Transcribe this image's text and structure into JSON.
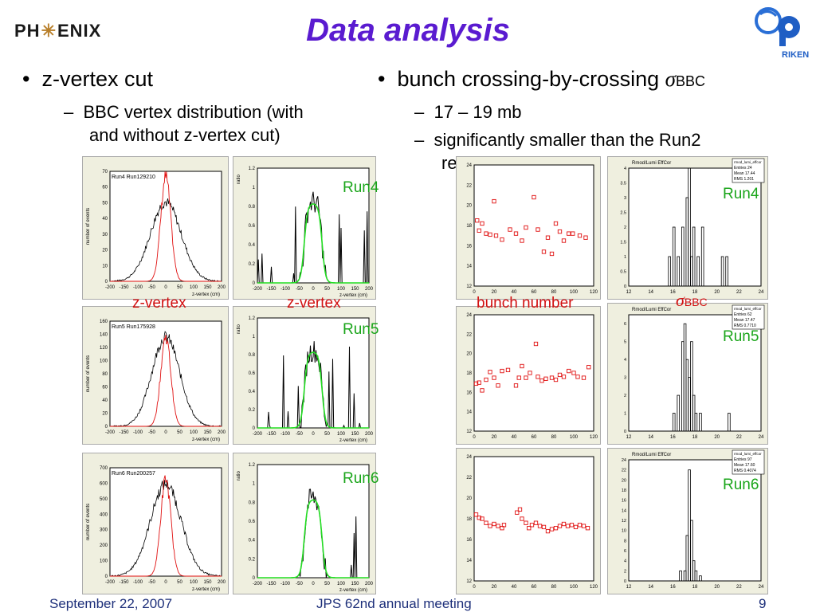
{
  "header": {
    "title": "Data analysis",
    "logo_left": "PH ENIX",
    "logo_right_text": "RIKEN"
  },
  "left": {
    "bullet": "z-vertex cut",
    "sub1": "BBC vertex distribution (with",
    "sub2": "and without z-vertex cut)"
  },
  "right": {
    "bullet": "bunch crossing-by-crossing ",
    "sigma": "σ",
    "sigma_sub": "BBC",
    "sub1": "17 – 19 mb",
    "sub2": "significantly smaller than the Run2",
    "sub3": "result …"
  },
  "overlay_labels": {
    "zvertex1": "z-vertex",
    "zvertex2": "z-vertex",
    "bunch_number": "bunch number",
    "sigma": "σ",
    "sigma_sub": "BBC",
    "run4_a": "Run4",
    "run5_a": "Run5",
    "run6_a": "Run6",
    "run4_b": "Run4",
    "run5_b": "Run5",
    "run6_b": "Run6"
  },
  "plots": {
    "vertex_titles": [
      "Run4 Run129210",
      "Run5 Run175928",
      "Run6 Run200257"
    ],
    "vertex_ylabel": "number of events",
    "vertex_xlabel": "z-vertex (cm)",
    "ratio_ylabel": "ratio",
    "hist_title": "Rmod/Lumi EffCor",
    "stats": [
      {
        "name": "rmod_lumi_effcor",
        "entries": "24",
        "mean": "17.44",
        "rms": "1.201"
      },
      {
        "name": "rmod_lumi_effcor",
        "entries": "62",
        "mean": "17.47",
        "rms": "0.7710"
      },
      {
        "name": "rmod_lumi_effcor",
        "entries": "97",
        "mean": "17.60",
        "rms": "0.4074"
      }
    ]
  },
  "colors": {
    "title": "#5a1bd0",
    "annotation": "#1aa51a",
    "red_label": "#d21010",
    "footer": "#1d2f7a",
    "plot_bg": "#efefdf"
  },
  "footer": {
    "date": "September 22, 2007",
    "meeting": "JPS 62nd annual meeting",
    "page": "9"
  }
}
